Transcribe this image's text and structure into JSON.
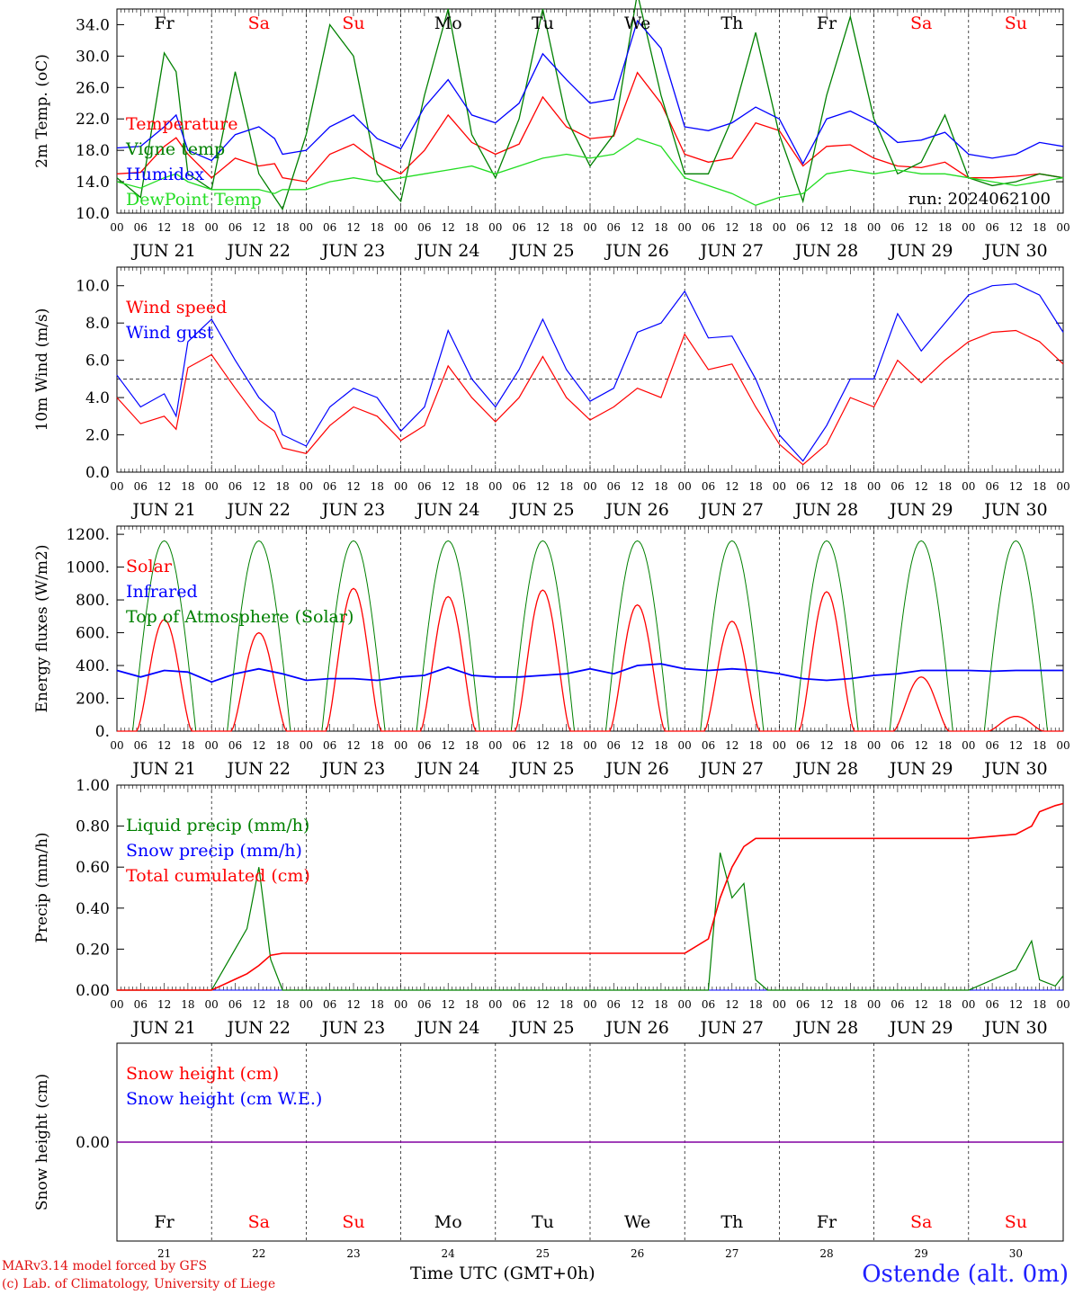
{
  "header": {
    "run_label": "run: 2024062100",
    "credit_line1": "MARv3.14 model forced by GFS",
    "credit_line2": "(c) Lab. of Climatology, University of Liege",
    "station": "Ostende (alt. 0m)",
    "x_axis_title": "Time UTC (GMT+0h)"
  },
  "colors": {
    "red": "#ff0000",
    "green": "#008000",
    "blue": "#0000ff",
    "lightgreen": "#22dd22",
    "purple": "#8000a0"
  },
  "days": [
    "Fr",
    "Sa",
    "Su",
    "Mo",
    "Tu",
    "We",
    "Th",
    "Fr",
    "Sa",
    "Su"
  ],
  "weekend_flags": [
    false,
    true,
    true,
    false,
    false,
    false,
    false,
    false,
    true,
    true
  ],
  "date_labels": [
    "JUN 21",
    "JUN 22",
    "JUN 23",
    "JUN 24",
    "JUN 25",
    "JUN 26",
    "JUN 27",
    "JUN 28",
    "JUN 29",
    "JUN 30"
  ],
  "day_numbers": [
    "21",
    "22",
    "23",
    "24",
    "25",
    "26",
    "27",
    "28",
    "29",
    "30"
  ],
  "hour_ticks": [
    "00",
    "06",
    "12",
    "18"
  ],
  "chart_data": [
    {
      "type": "line",
      "ylabel": "2m Temp. (oC)",
      "ylim": [
        10,
        36
      ],
      "yticks": [
        "10.0",
        "14.0",
        "18.0",
        "22.0",
        "26.0",
        "30.0",
        "34.0"
      ],
      "legend": [
        "Temperature",
        "Vigne temp",
        "Humidex",
        "DewPoint Temp"
      ],
      "x_hours": [
        0,
        6,
        12,
        15,
        18,
        24,
        30,
        36,
        40,
        42,
        48,
        54,
        60,
        66,
        72,
        78,
        84,
        90,
        96,
        102,
        108,
        114,
        120,
        126,
        132,
        138,
        144,
        150,
        156,
        162,
        168,
        174,
        180,
        186,
        192,
        198,
        204,
        210,
        216,
        222,
        228,
        234,
        240
      ],
      "series": [
        {
          "name": "Temperature",
          "color": "red",
          "values": [
            15.0,
            15.2,
            18.5,
            19.6,
            17.5,
            14.5,
            17.0,
            16.0,
            16.3,
            14.5,
            14.0,
            17.5,
            18.8,
            16.5,
            15.0,
            18.0,
            22.5,
            19.0,
            17.5,
            18.8,
            24.8,
            21.0,
            19.5,
            19.8,
            27.9,
            24.0,
            17.5,
            16.5,
            17.0,
            21.5,
            20.5,
            16.0,
            18.5,
            18.7,
            17.0,
            16.0,
            15.8,
            16.5,
            14.5,
            14.5,
            14.7,
            15.0,
            14.5
          ]
        },
        {
          "name": "Vigne temp",
          "color": "green",
          "values": [
            14.5,
            12.0,
            30.4,
            28.0,
            15.0,
            13.0,
            28.0,
            15.0,
            12.0,
            10.5,
            20.0,
            34.0,
            30.0,
            15.0,
            11.5,
            25.0,
            36.0,
            20.0,
            14.5,
            22.0,
            36.0,
            22.0,
            16.0,
            20.0,
            38.0,
            25.0,
            15.0,
            15.0,
            22.0,
            33.0,
            20.0,
            11.5,
            25.0,
            35.0,
            22.0,
            15.0,
            16.5,
            22.5,
            14.5,
            13.5,
            14.0,
            15.0,
            14.5
          ]
        },
        {
          "name": "Humidex",
          "color": "blue",
          "values": [
            18.3,
            18.5,
            21.0,
            22.5,
            18.0,
            16.7,
            20.0,
            21.0,
            19.5,
            17.5,
            18.0,
            21.0,
            22.5,
            19.5,
            18.2,
            23.5,
            27.0,
            22.5,
            21.5,
            24.0,
            30.3,
            27.0,
            24.0,
            24.5,
            34.5,
            31.0,
            21.0,
            20.5,
            21.5,
            23.5,
            22.0,
            16.3,
            22.0,
            23.0,
            21.5,
            19.0,
            19.3,
            20.3,
            17.5,
            17.0,
            17.5,
            19.0,
            18.5
          ]
        },
        {
          "name": "DewPoint Temp",
          "color": "lightgreen",
          "values": [
            14.0,
            13.2,
            14.5,
            15.0,
            14.0,
            13.0,
            13.0,
            13.0,
            12.5,
            13.0,
            13.0,
            14.0,
            14.5,
            14.0,
            14.5,
            15.0,
            15.5,
            16.0,
            15.0,
            16.0,
            17.0,
            17.5,
            17.0,
            17.5,
            19.5,
            18.5,
            14.5,
            13.5,
            12.5,
            11.0,
            12.0,
            12.5,
            15.0,
            15.5,
            15.0,
            15.5,
            15.0,
            15.0,
            14.5,
            14.0,
            13.5,
            14.0,
            14.5
          ]
        }
      ]
    },
    {
      "type": "line",
      "ylabel": "10m Wind (m/s)",
      "ylim": [
        0,
        11
      ],
      "yticks": [
        "0.0",
        "2.0",
        "4.0",
        "6.0",
        "8.0",
        "10.0"
      ],
      "reference_line": 5.0,
      "legend": [
        "Wind speed",
        "Wind gust"
      ],
      "x_hours": [
        0,
        6,
        12,
        15,
        18,
        24,
        30,
        36,
        40,
        42,
        48,
        54,
        60,
        66,
        72,
        78,
        84,
        90,
        96,
        102,
        108,
        114,
        120,
        126,
        132,
        138,
        144,
        150,
        156,
        162,
        168,
        174,
        180,
        186,
        192,
        198,
        204,
        210,
        216,
        222,
        228,
        234,
        240
      ],
      "series": [
        {
          "name": "Wind speed",
          "color": "red",
          "values": [
            4.0,
            2.6,
            3.0,
            2.3,
            5.6,
            6.3,
            4.5,
            2.8,
            2.2,
            1.3,
            1.0,
            2.5,
            3.5,
            3.0,
            1.7,
            2.5,
            5.7,
            4.0,
            2.7,
            4.0,
            6.2,
            4.0,
            2.8,
            3.5,
            4.5,
            4.0,
            7.4,
            5.5,
            5.8,
            3.5,
            1.5,
            0.4,
            1.5,
            4.0,
            3.5,
            6.0,
            4.8,
            6.0,
            7.0,
            7.5,
            7.6,
            7.0,
            5.8
          ]
        },
        {
          "name": "Wind gust",
          "color": "blue",
          "values": [
            5.2,
            3.5,
            4.2,
            3.0,
            7.0,
            8.2,
            6.0,
            4.0,
            3.2,
            2.0,
            1.4,
            3.5,
            4.5,
            4.0,
            2.2,
            3.5,
            7.6,
            5.0,
            3.5,
            5.5,
            8.2,
            5.5,
            3.8,
            4.5,
            7.5,
            8.0,
            9.7,
            7.2,
            7.3,
            5.0,
            2.0,
            0.6,
            2.5,
            5.0,
            5.0,
            8.5,
            6.5,
            8.0,
            9.5,
            10.0,
            10.1,
            9.5,
            7.5
          ]
        }
      ]
    },
    {
      "type": "line",
      "ylabel": "Energy fluxes (W/m2)",
      "ylim": [
        0,
        1250
      ],
      "yticks": [
        "0.",
        "200.",
        "400.",
        "600.",
        "800.",
        "1000.",
        "1200."
      ],
      "legend": [
        "Solar",
        "Infrared",
        "Top of Atmosphere (Solar)"
      ],
      "toa_peak": 1160,
      "solar_peaks": [
        680,
        600,
        870,
        820,
        860,
        770,
        670,
        850,
        330,
        90
      ],
      "infrared_values": [
        370,
        330,
        370,
        360,
        300,
        350,
        380,
        350,
        310,
        320,
        320,
        310,
        330,
        340,
        390,
        340,
        330,
        330,
        340,
        350,
        380,
        350,
        400,
        410,
        380,
        370,
        380,
        370,
        350,
        320,
        310,
        320,
        340,
        350,
        370,
        370,
        370,
        365,
        370,
        370,
        370
      ],
      "series": [
        {
          "name": "Solar",
          "color": "red"
        },
        {
          "name": "Infrared",
          "color": "blue"
        },
        {
          "name": "Top of Atmosphere (Solar)",
          "color": "green"
        }
      ]
    },
    {
      "type": "line",
      "ylabel": "Precip (mm/h)",
      "ylim": [
        0,
        1.0
      ],
      "yticks": [
        "0.00",
        "0.20",
        "0.40",
        "0.60",
        "0.80",
        "1.00"
      ],
      "legend": [
        "Liquid precip (mm/h)",
        "Snow precip (mm/h)",
        "Total cumulated (cm)"
      ],
      "x_hours": [
        0,
        24,
        33,
        36,
        39,
        42,
        45,
        48,
        60,
        72,
        96,
        120,
        144,
        150,
        153,
        156,
        159,
        162,
        165,
        168,
        192,
        216,
        228,
        232,
        234,
        238,
        240
      ],
      "series": [
        {
          "name": "Liquid precip (mm/h)",
          "color": "green",
          "values": [
            0.0,
            0.0,
            0.3,
            0.6,
            0.15,
            0.0,
            0.0,
            0.0,
            0.0,
            0.0,
            0.0,
            0.0,
            0.0,
            0.0,
            0.67,
            0.45,
            0.52,
            0.05,
            0.0,
            0.0,
            0.0,
            0.0,
            0.1,
            0.24,
            0.05,
            0.02,
            0.07
          ]
        },
        {
          "name": "Total cumulated (cm)",
          "color": "red",
          "values": [
            0.0,
            0.0,
            0.08,
            0.12,
            0.17,
            0.18,
            0.18,
            0.18,
            0.18,
            0.18,
            0.18,
            0.18,
            0.18,
            0.25,
            0.45,
            0.6,
            0.7,
            0.74,
            0.74,
            0.74,
            0.74,
            0.74,
            0.76,
            0.8,
            0.87,
            0.9,
            0.91
          ]
        },
        {
          "name": "Snow precip (mm/h)",
          "color": "blue",
          "values": [
            0,
            0,
            0,
            0,
            0,
            0,
            0,
            0,
            0,
            0,
            0,
            0,
            0,
            0,
            0,
            0,
            0,
            0,
            0,
            0,
            0,
            0,
            0,
            0,
            0,
            0,
            0
          ]
        }
      ]
    },
    {
      "type": "line",
      "ylabel": "Snow height (cm)",
      "yticks": [
        "0.00"
      ],
      "legend": [
        "Snow height (cm)",
        "Snow height (cm W.E.)"
      ],
      "series": [
        {
          "name": "Snow height (cm)",
          "color": "red",
          "values": [
            0,
            0
          ]
        },
        {
          "name": "Snow height (cm W.E.)",
          "color": "blue",
          "values": [
            0,
            0
          ]
        }
      ]
    }
  ]
}
